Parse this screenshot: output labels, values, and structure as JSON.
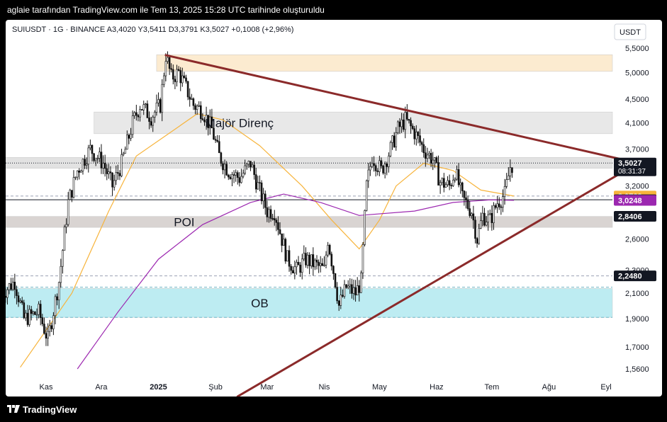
{
  "header": {
    "attribution": "aglaie tarafından TradingView.com ile Tem 13, 2025 15:28 UTC tarihinde oluşturuldu"
  },
  "footer": {
    "brand": "TradingView",
    "logo_icon": "tradingview-logo-icon"
  },
  "chart_data": {
    "type": "candlestick",
    "symbol_line": "SUIUSDT · 1G · BINANCE  A3,4020  Y3,5411  D3,3791  K3,5027  +0,1008 (+2,96%)",
    "currency": "USDT",
    "price_scale": "log",
    "y_ticks": [
      "5,5000",
      "5,0000",
      "4,5000",
      "4,1000",
      "3,7000",
      "3,2000",
      "2,6000",
      "2,3000",
      "2,1000",
      "1,9000",
      "1,7000",
      "1,5600"
    ],
    "x_ticks": [
      "Kas",
      "Ara",
      "2025",
      "Şub",
      "Mar",
      "Nis",
      "May",
      "Haz",
      "Tem",
      "Ağu",
      "Eyl"
    ],
    "x_tick_dates": [
      "2024-11-01",
      "2024-12-01",
      "2025-01-01",
      "2025-02-01",
      "2025-03-01",
      "2025-04-01",
      "2025-05-01",
      "2025-06-01",
      "2025-07-01",
      "2025-08-01",
      "2025-09-01"
    ],
    "price_labels": [
      {
        "value": "3,5027",
        "extra": "08:31:37",
        "color": "#131722"
      },
      {
        "value": "3,0763",
        "color": "#f7b43c"
      },
      {
        "value": "3,0321",
        "color": "#131722"
      },
      {
        "value": "3,0248",
        "color": "#9c27b0"
      },
      {
        "value": "2,8406",
        "color": "#131722"
      },
      {
        "value": "2,2480",
        "color": "#131722"
      }
    ],
    "zones": [
      {
        "label": "",
        "from_date": "2024-12-31",
        "to_date": "2025-09-10",
        "high": 5.36,
        "low": 5.02,
        "color": "#fcebd0"
      },
      {
        "label": "Majör Direnç",
        "from_date": "2024-11-27",
        "to_date": "2025-09-10",
        "high": 4.28,
        "low": 3.93,
        "color": "#e8e8e8"
      },
      {
        "label": "",
        "from_date": "2024-10-08",
        "to_date": "2025-09-10",
        "high": 3.58,
        "low": 3.43,
        "color": "#e2e2e2"
      },
      {
        "label": "POI",
        "from_date": "2024-10-08",
        "to_date": "2025-09-10",
        "high": 2.84,
        "low": 2.72,
        "color": "#d9d4d2"
      },
      {
        "label": "OB",
        "from_date": "2024-10-08",
        "to_date": "2025-09-10",
        "high": 2.14,
        "low": 1.91,
        "color": "#bdecf2"
      }
    ],
    "horizontal_lines": [
      {
        "price": 3.5027,
        "style": "dotted",
        "color": "#131722"
      },
      {
        "price": 3.0763,
        "style": "dashed",
        "color": "#9aa0b4"
      },
      {
        "price": 3.0321,
        "style": "solid",
        "color": "#131722"
      },
      {
        "price": 2.248,
        "style": "dashed",
        "color": "#9aa0b4"
      },
      {
        "price": 2.15,
        "style": "dashed",
        "color": "#6fb6c6"
      },
      {
        "price": 1.91,
        "style": "dashed",
        "color": "#6fb6c6"
      }
    ],
    "trendlines": [
      {
        "from": {
          "date": "2025-01-05",
          "price": 5.35
        },
        "to": {
          "date": "2025-09-10",
          "price": 3.55
        },
        "color": "#8b2a2a"
      },
      {
        "from": {
          "date": "2025-02-13",
          "price": 1.4
        },
        "to": {
          "date": "2025-09-10",
          "price": 3.38
        },
        "color": "#8b2a2a"
      }
    ],
    "moving_averages": [
      {
        "color": "#f7b43c",
        "points": [
          [
            "2024-10-18",
            1.57
          ],
          [
            "2024-11-15",
            2.1
          ],
          [
            "2024-12-05",
            2.9
          ],
          [
            "2024-12-20",
            3.6
          ],
          [
            "2025-01-10",
            4.0
          ],
          [
            "2025-01-22",
            4.25
          ],
          [
            "2025-02-05",
            4.15
          ],
          [
            "2025-02-25",
            3.75
          ],
          [
            "2025-03-20",
            3.2
          ],
          [
            "2025-04-05",
            2.8
          ],
          [
            "2025-04-20",
            2.5
          ],
          [
            "2025-05-01",
            2.8
          ],
          [
            "2025-05-10",
            3.2
          ],
          [
            "2025-05-25",
            3.5
          ],
          [
            "2025-06-10",
            3.4
          ],
          [
            "2025-06-25",
            3.15
          ],
          [
            "2025-07-13",
            3.0763
          ]
        ]
      },
      {
        "color": "#9c27b0",
        "points": [
          [
            "2024-11-18",
            1.56
          ],
          [
            "2024-12-10",
            1.95
          ],
          [
            "2025-01-01",
            2.4
          ],
          [
            "2025-01-25",
            2.75
          ],
          [
            "2025-02-20",
            3.0
          ],
          [
            "2025-03-10",
            3.1
          ],
          [
            "2025-03-30",
            3.0
          ],
          [
            "2025-04-20",
            2.85
          ],
          [
            "2025-05-20",
            2.9
          ],
          [
            "2025-06-10",
            3.0
          ],
          [
            "2025-06-30",
            3.03
          ],
          [
            "2025-07-13",
            3.0248
          ]
        ]
      }
    ],
    "series": [
      {
        "name": "SUIUSDT",
        "points": [
          [
            "2024-10-08",
            2.1
          ],
          [
            "2024-10-15",
            2.2
          ],
          [
            "2024-10-20",
            1.9
          ],
          [
            "2024-10-28",
            1.95
          ],
          [
            "2024-11-02",
            1.75
          ],
          [
            "2024-11-08",
            2.2
          ],
          [
            "2024-11-13",
            3.0
          ],
          [
            "2024-11-18",
            3.4
          ],
          [
            "2024-11-25",
            3.7
          ],
          [
            "2024-12-02",
            3.5
          ],
          [
            "2024-12-07",
            3.2
          ],
          [
            "2024-12-12",
            3.5
          ],
          [
            "2024-12-18",
            4.1
          ],
          [
            "2024-12-22",
            4.4
          ],
          [
            "2024-12-28",
            4.2
          ],
          [
            "2025-01-02",
            4.4
          ],
          [
            "2025-01-05",
            5.35
          ],
          [
            "2025-01-08",
            4.9
          ],
          [
            "2025-01-12",
            5.0
          ],
          [
            "2025-01-16",
            4.7
          ],
          [
            "2025-01-20",
            4.4
          ],
          [
            "2025-01-25",
            4.3
          ],
          [
            "2025-01-30",
            4.0
          ],
          [
            "2025-02-03",
            3.6
          ],
          [
            "2025-02-08",
            3.4
          ],
          [
            "2025-02-14",
            3.3
          ],
          [
            "2025-02-20",
            3.5
          ],
          [
            "2025-02-24",
            3.2
          ],
          [
            "2025-03-01",
            2.9
          ],
          [
            "2025-03-05",
            2.9
          ],
          [
            "2025-03-09",
            2.6
          ],
          [
            "2025-03-12",
            2.4
          ],
          [
            "2025-03-17",
            2.3
          ],
          [
            "2025-03-22",
            2.4
          ],
          [
            "2025-03-27",
            2.35
          ],
          [
            "2025-04-01",
            2.3
          ],
          [
            "2025-04-03",
            2.6
          ],
          [
            "2025-04-07",
            2.2
          ],
          [
            "2025-04-09",
            2.0
          ],
          [
            "2025-04-13",
            2.15
          ],
          [
            "2025-04-18",
            2.1
          ],
          [
            "2025-04-21",
            2.2
          ],
          [
            "2025-04-24",
            3.2
          ],
          [
            "2025-04-27",
            3.6
          ],
          [
            "2025-05-02",
            3.4
          ],
          [
            "2025-05-07",
            3.7
          ],
          [
            "2025-05-11",
            4.0
          ],
          [
            "2025-05-15",
            4.15
          ],
          [
            "2025-05-20",
            3.95
          ],
          [
            "2025-05-25",
            3.7
          ],
          [
            "2025-05-30",
            3.55
          ],
          [
            "2025-06-03",
            3.25
          ],
          [
            "2025-06-08",
            3.2
          ],
          [
            "2025-06-11",
            3.4
          ],
          [
            "2025-06-15",
            3.05
          ],
          [
            "2025-06-20",
            2.9
          ],
          [
            "2025-06-23",
            2.6
          ],
          [
            "2025-06-26",
            2.85
          ],
          [
            "2025-06-30",
            2.8
          ],
          [
            "2025-07-04",
            3.0
          ],
          [
            "2025-07-08",
            3.1
          ],
          [
            "2025-07-11",
            3.45
          ],
          [
            "2025-07-13",
            3.5027
          ]
        ]
      }
    ]
  }
}
